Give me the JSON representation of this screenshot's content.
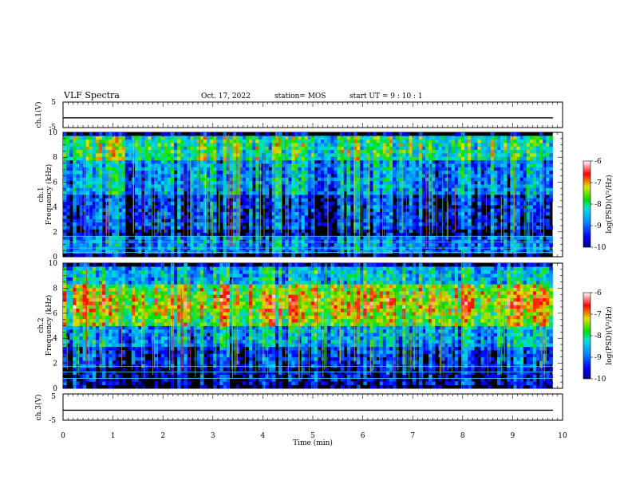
{
  "header": {
    "title": "VLF Spectra",
    "date": "Oct. 17, 2022",
    "station": "station= MOS",
    "start": "start  UT  =   9  : 10 : 1"
  },
  "chart_data": [
    {
      "type": "line",
      "ylabel": "ch.1(V)",
      "xlim": [
        0,
        10
      ],
      "ylim": [
        -5,
        5
      ],
      "yticks": [
        "5",
        "-5"
      ],
      "series_level": -1.2
    },
    {
      "type": "heatmap",
      "ylabel": "ch.1\nFrequency (kHz)",
      "xlim": [
        0,
        10
      ],
      "ylim": [
        0,
        10
      ],
      "yticks": [
        "0",
        "2",
        "4",
        "6",
        "8",
        "10"
      ],
      "colorbar": {
        "label": "log(PSD)(V²/Hz)",
        "range": [
          -10,
          -6
        ],
        "ticks": [
          "-6",
          "-7",
          "-8",
          "-9",
          "-10"
        ]
      },
      "cyan_lines_khz": [
        0.35,
        0.7,
        1.2,
        1.65
      ]
    },
    {
      "type": "heatmap",
      "ylabel": "ch.2\nFrequency (kHz)",
      "xlim": [
        0,
        10
      ],
      "ylim": [
        0,
        10
      ],
      "yticks": [
        "0",
        "2",
        "4",
        "6",
        "8",
        "10"
      ],
      "colorbar": {
        "label": "log(PSD)(V²/Hz)",
        "range": [
          -10,
          -6
        ],
        "ticks": [
          "-6",
          "-7",
          "-8",
          "-9",
          "-10"
        ]
      },
      "cyan_lines_khz": [
        0.8,
        1.3,
        1.75
      ]
    },
    {
      "type": "line",
      "ylabel": "ch.3(V)",
      "xlim": [
        0,
        10
      ],
      "ylim": [
        -5,
        5
      ],
      "yticks": [
        "5",
        "-5"
      ],
      "series_level": -1.2
    }
  ],
  "xaxis": {
    "label": "Time  (min)",
    "ticks": [
      "0",
      "1",
      "2",
      "3",
      "4",
      "5",
      "6",
      "7",
      "8",
      "9",
      "10"
    ]
  }
}
